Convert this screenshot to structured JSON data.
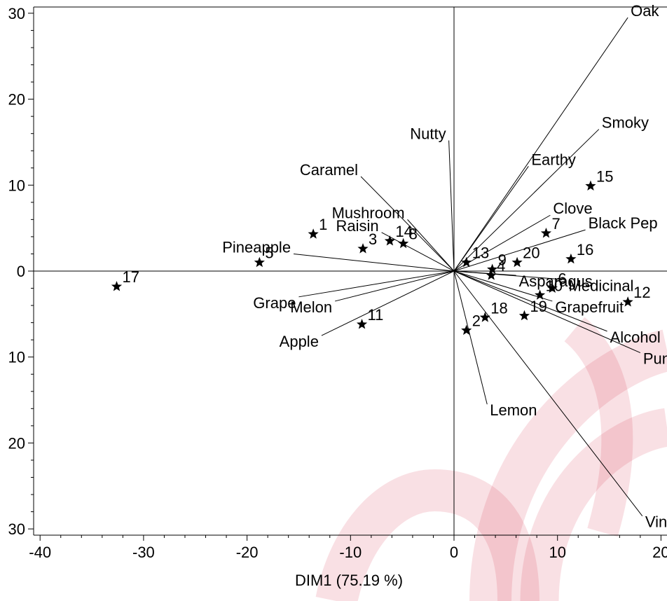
{
  "chart_data": {
    "type": "scatter",
    "title": "",
    "xlabel": "DIM1 (75.19 %)",
    "ylabel": "",
    "xlim": [
      -41,
      20.5
    ],
    "ylim": [
      -31,
      31
    ],
    "x_ticks": [
      "-40",
      "-30",
      "-20",
      "-10",
      "0",
      "10",
      "20"
    ],
    "y_ticks": [
      "30",
      "20",
      "10",
      "0",
      "10",
      "20",
      "30"
    ],
    "grid": false,
    "watermark_color": "#d7263d",
    "attributes": [
      {
        "name": "Oak",
        "x": 16.8,
        "y": 29.5
      },
      {
        "name": "Smoky",
        "x": 14.0,
        "y": 16.5
      },
      {
        "name": "Earthy",
        "x": 7.2,
        "y": 12.2
      },
      {
        "name": "Clove",
        "x": 9.3,
        "y": 6.5
      },
      {
        "name": "Black Pep",
        "x": 12.7,
        "y": 4.8
      },
      {
        "name": "Nutty",
        "x": -0.5,
        "y": 15.2
      },
      {
        "name": "Caramel",
        "x": -9.0,
        "y": 11.0
      },
      {
        "name": "Mushroom",
        "x": -4.5,
        "y": 6.0
      },
      {
        "name": "Raisin",
        "x": -7.0,
        "y": 4.5
      },
      {
        "name": "Pineapple",
        "x": -15.5,
        "y": 2.0
      },
      {
        "name": "Grape",
        "x": -15.0,
        "y": -3.0
      },
      {
        "name": "Melon",
        "x": -11.5,
        "y": -3.5
      },
      {
        "name": "Apple",
        "x": -12.8,
        "y": -7.5
      },
      {
        "name": "Asparagus",
        "x": 6.0,
        "y": -0.5
      },
      {
        "name": "Medicinal",
        "x": 10.8,
        "y": -1.0
      },
      {
        "name": "Grapefruit",
        "x": 9.5,
        "y": -3.5
      },
      {
        "name": "Alcohol",
        "x": 14.8,
        "y": -7.0
      },
      {
        "name": "Pungent",
        "x": 18.0,
        "y": -9.5
      },
      {
        "name": "Lemon",
        "x": 3.2,
        "y": -15.5
      },
      {
        "name": "Vinegar",
        "x": 18.2,
        "y": -28.5
      }
    ],
    "observations": [
      {
        "label": "1",
        "x": -13.6,
        "y": 4.3
      },
      {
        "label": "2",
        "x": 1.2,
        "y": -6.9
      },
      {
        "label": "3",
        "x": -8.8,
        "y": 2.6
      },
      {
        "label": "4",
        "x": 3.6,
        "y": -0.5
      },
      {
        "label": "5",
        "x": -18.8,
        "y": 1.0
      },
      {
        "label": "6",
        "x": 9.5,
        "y": -2.0
      },
      {
        "label": "7",
        "x": 8.9,
        "y": 4.4
      },
      {
        "label": "8",
        "x": -4.9,
        "y": 3.2
      },
      {
        "label": "9",
        "x": 3.7,
        "y": 0.2
      },
      {
        "label": "10",
        "x": 8.3,
        "y": -2.8
      },
      {
        "label": "11",
        "x": -8.9,
        "y": -6.2
      },
      {
        "label": "12",
        "x": 16.8,
        "y": -3.6
      },
      {
        "label": "13",
        "x": 1.2,
        "y": 1.0
      },
      {
        "label": "14",
        "x": -6.2,
        "y": 3.5
      },
      {
        "label": "15",
        "x": 13.2,
        "y": 9.9
      },
      {
        "label": "16",
        "x": 11.3,
        "y": 1.4
      },
      {
        "label": "17",
        "x": -32.6,
        "y": -1.8
      },
      {
        "label": "18",
        "x": 3.0,
        "y": -5.4
      },
      {
        "label": "19",
        "x": 6.8,
        "y": -5.2
      },
      {
        "label": "20",
        "x": 6.1,
        "y": 1.0
      }
    ]
  }
}
